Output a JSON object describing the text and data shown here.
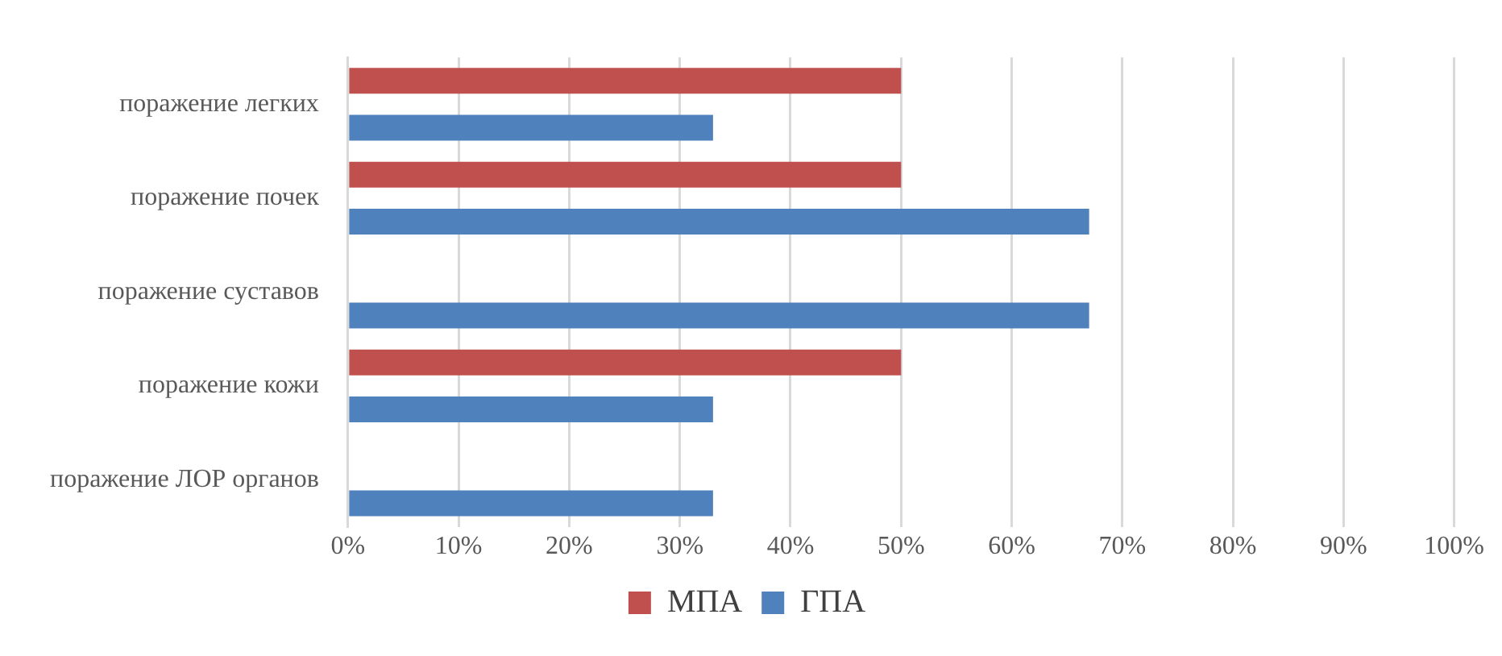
{
  "chart_data": {
    "type": "bar",
    "orientation": "horizontal",
    "categories": [
      "поражение легких",
      "поражение почек",
      "поражение суставов",
      "поражение кожи",
      "поражение ЛОР органов"
    ],
    "series": [
      {
        "name": "МПА",
        "color": "#c0504d",
        "values": [
          50,
          50,
          0,
          50,
          0
        ]
      },
      {
        "name": "ГПА",
        "color": "#4f81bd",
        "values": [
          33,
          67,
          67,
          33,
          33
        ]
      }
    ],
    "xlim": [
      0,
      100
    ],
    "xticks": [
      {
        "value": 0,
        "label": "0%"
      },
      {
        "value": 10,
        "label": "10%"
      },
      {
        "value": 20,
        "label": "20%"
      },
      {
        "value": 30,
        "label": "30%"
      },
      {
        "value": 40,
        "label": "40%"
      },
      {
        "value": 50,
        "label": "50%"
      },
      {
        "value": 60,
        "label": "60%"
      },
      {
        "value": 70,
        "label": "70%"
      },
      {
        "value": 80,
        "label": "80%"
      },
      {
        "value": 90,
        "label": "90%"
      },
      {
        "value": 100,
        "label": "100%"
      }
    ],
    "grid": "x",
    "legend": "bottom"
  }
}
